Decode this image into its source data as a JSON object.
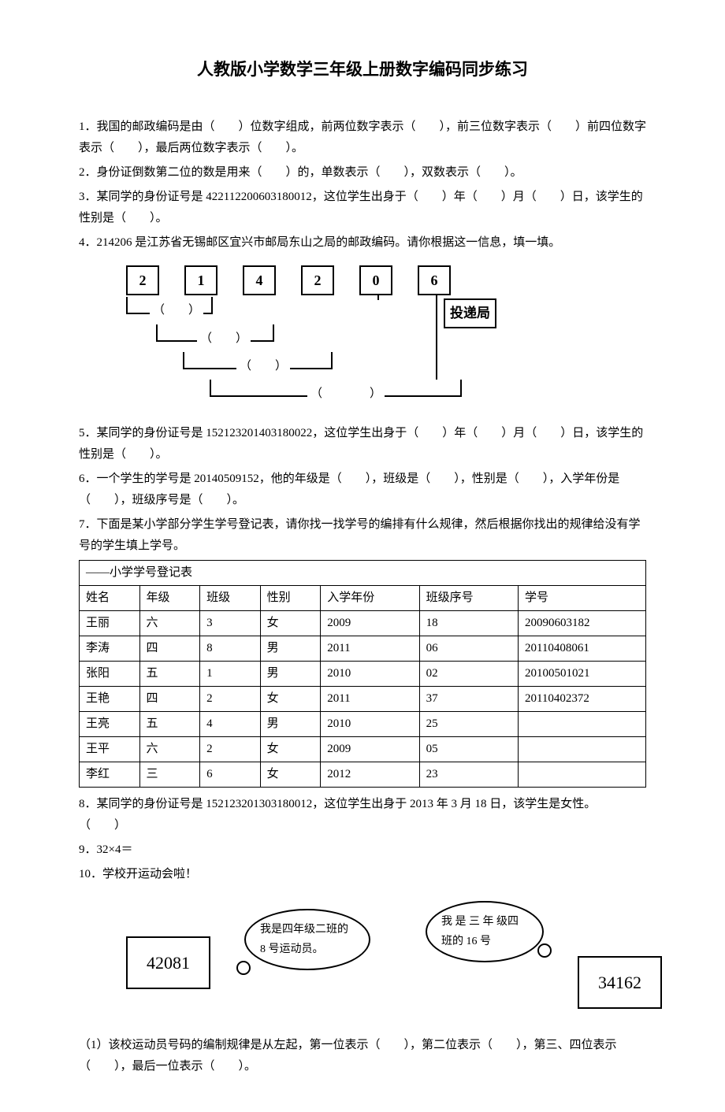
{
  "title": "人教版小学数学三年级上册数字编码同步练习",
  "q1": "1．我国的邮政编码是由（　　）位数字组成，前两位数字表示（　　），前三位数字表示（　　）前四位数字表示（　　），最后两位数字表示（　　）。",
  "q2": "2．身份证倒数第二位的数是用来（　　）的，单数表示（　　），双数表示（　　）。",
  "q3": "3．某同学的身份证号是 422112200603180012，这位学生出身于（　　）年（　　）月（　　）日，该学生的性别是（　　）。",
  "q4": "4．214206 是江苏省无锡邮区宜兴市邮局东山之局的邮政编码。请你根据这一信息，填一填。",
  "postal": {
    "digits": [
      "2",
      "1",
      "4",
      "2",
      "0",
      "6"
    ],
    "delivery": "投递局",
    "blanks": [
      "（　　）",
      "（　　）",
      "（　　）",
      "（　　　　）"
    ]
  },
  "q5": "5．某同学的身份证号是 152123201403180022，这位学生出身于（　　）年（　　）月（　　）日，该学生的性别是（　　）。",
  "q6": "6．一个学生的学号是 20140509152，他的年级是（　　），班级是（　　），性别是（　　），入学年份是（　　），班级序号是（　　）。",
  "q7": "7．下面是某小学部分学生学号登记表，请你找一找学号的编排有什么规律，然后根据你找出的规律给没有学号的学生填上学号。",
  "table": {
    "caption": "——小学学号登记表",
    "headers": [
      "姓名",
      "年级",
      "班级",
      "性别",
      "入学年份",
      "班级序号",
      "学号"
    ],
    "rows": [
      [
        "王丽",
        "六",
        "3",
        "女",
        "2009",
        "18",
        "20090603182"
      ],
      [
        "李涛",
        "四",
        "8",
        "男",
        "2011",
        "06",
        "20110408061"
      ],
      [
        "张阳",
        "五",
        "1",
        "男",
        "2010",
        "02",
        "20100501021"
      ],
      [
        "王艳",
        "四",
        "2",
        "女",
        "2011",
        "37",
        "20110402372"
      ],
      [
        "王亮",
        "五",
        "4",
        "男",
        "2010",
        "25",
        ""
      ],
      [
        "王平",
        "六",
        "2",
        "女",
        "2009",
        "05",
        ""
      ],
      [
        "李红",
        "三",
        "6",
        "女",
        "2012",
        "23",
        ""
      ]
    ]
  },
  "q8": "8．某同学的身份证号是 152123201303180012，这位学生出身于 2013 年 3 月 18 日，该学生是女性。　　（　　）",
  "q9": "9．32×4＝",
  "q10": "10．学校开运动会啦！",
  "sports": {
    "box1": "42081",
    "box2": "34162",
    "bubble1": "我是四年级二班的 8 号运动员。",
    "bubble2": "我 是 三 年 级四班的 16 号"
  },
  "q10_sub": "（1）该校运动员号码的编制规律是从左起，第一位表示（　　），第二位表示（　　），第三、四位表示（　　），最后一位表示（　　）。"
}
